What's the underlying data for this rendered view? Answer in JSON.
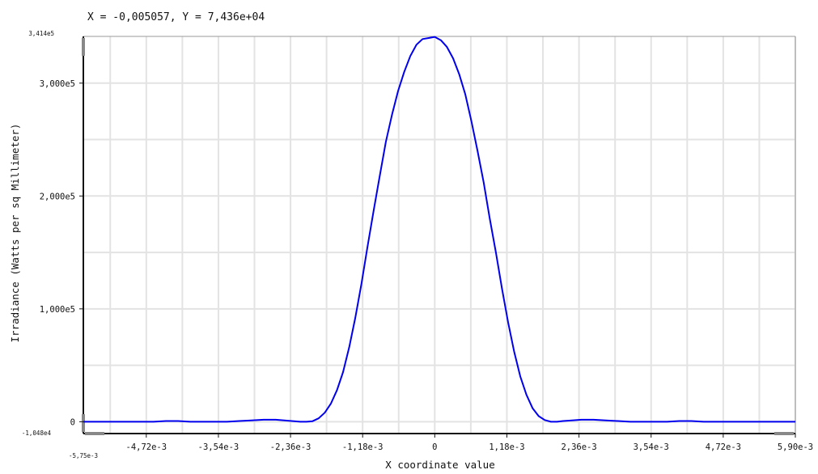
{
  "readout": "X = -0,005057, Y = 7,436e+04",
  "chart_data": {
    "type": "line",
    "title": "",
    "xlabel": "X coordinate value",
    "ylabel": "Irradiance (Watts per sq Millimeter)",
    "xlim": [
      -0.00575,
      0.0059
    ],
    "ylim": [
      -10480,
      341400
    ],
    "x_ticks": [
      {
        "value": -0.00472,
        "label": "-4,72e-3"
      },
      {
        "value": -0.00354,
        "label": "-3,54e-3"
      },
      {
        "value": -0.00236,
        "label": "-2,36e-3"
      },
      {
        "value": -0.00118,
        "label": "-1,18e-3"
      },
      {
        "value": 0,
        "label": "0"
      },
      {
        "value": 0.00118,
        "label": "1,18e-3"
      },
      {
        "value": 0.00236,
        "label": "2,36e-3"
      },
      {
        "value": 0.00354,
        "label": "3,54e-3"
      },
      {
        "value": 0.00472,
        "label": "4,72e-3"
      },
      {
        "value": 0.0059,
        "label": "5,90e-3"
      }
    ],
    "x_min_label": "-5,75e-3",
    "y_ticks": [
      {
        "value": 0,
        "label": "0"
      },
      {
        "value": 100000,
        "label": "1,000e5"
      },
      {
        "value": 200000,
        "label": "2,000e5"
      },
      {
        "value": 300000,
        "label": "3,000e5"
      }
    ],
    "y_max_label": "3,414e5",
    "y_min_label": "-1,048e4",
    "grid": true,
    "series": [
      {
        "color": "#0000ee",
        "x": [
          -0.00575,
          -0.0046,
          -0.0044,
          -0.0042,
          -0.004,
          -0.0038,
          -0.0034,
          -0.0032,
          -0.003,
          -0.0028,
          -0.0026,
          -0.0024,
          -0.0022,
          -0.0021,
          -0.002,
          -0.0019,
          -0.0018,
          -0.0017,
          -0.0016,
          -0.0015,
          -0.0014,
          -0.0013,
          -0.0012,
          -0.0011,
          -0.001,
          -0.0009,
          -0.0008,
          -0.0007,
          -0.0006,
          -0.0005,
          -0.0004,
          -0.0003,
          -0.0002,
          -0.0001,
          0,
          0.0001,
          0.0002,
          0.0003,
          0.0004,
          0.0005,
          0.0006,
          0.0007,
          0.0008,
          0.0009,
          0.001,
          0.0011,
          0.0012,
          0.0013,
          0.0014,
          0.0015,
          0.0016,
          0.0017,
          0.0018,
          0.0019,
          0.002,
          0.0021,
          0.0022,
          0.0024,
          0.0026,
          0.0028,
          0.003,
          0.0032,
          0.0034,
          0.0038,
          0.004,
          0.0042,
          0.0044,
          0.0046,
          0.0059
        ],
        "y": [
          0,
          0,
          600,
          600,
          0,
          0,
          0,
          600,
          1200,
          1800,
          1800,
          900,
          0,
          0,
          500,
          3000,
          8000,
          16000,
          28000,
          44000,
          66000,
          92000,
          122000,
          155000,
          187000,
          218000,
          248000,
          272000,
          293000,
          310000,
          324000,
          334000,
          339000,
          340000,
          341000,
          338000,
          332000,
          322000,
          308000,
          290000,
          266000,
          240000,
          212000,
          180000,
          150000,
          118000,
          88000,
          62000,
          40000,
          24000,
          12000,
          5000,
          1500,
          0,
          0,
          600,
          1000,
          1800,
          1800,
          1200,
          600,
          0,
          0,
          0,
          600,
          600,
          0,
          0,
          0
        ]
      }
    ]
  }
}
